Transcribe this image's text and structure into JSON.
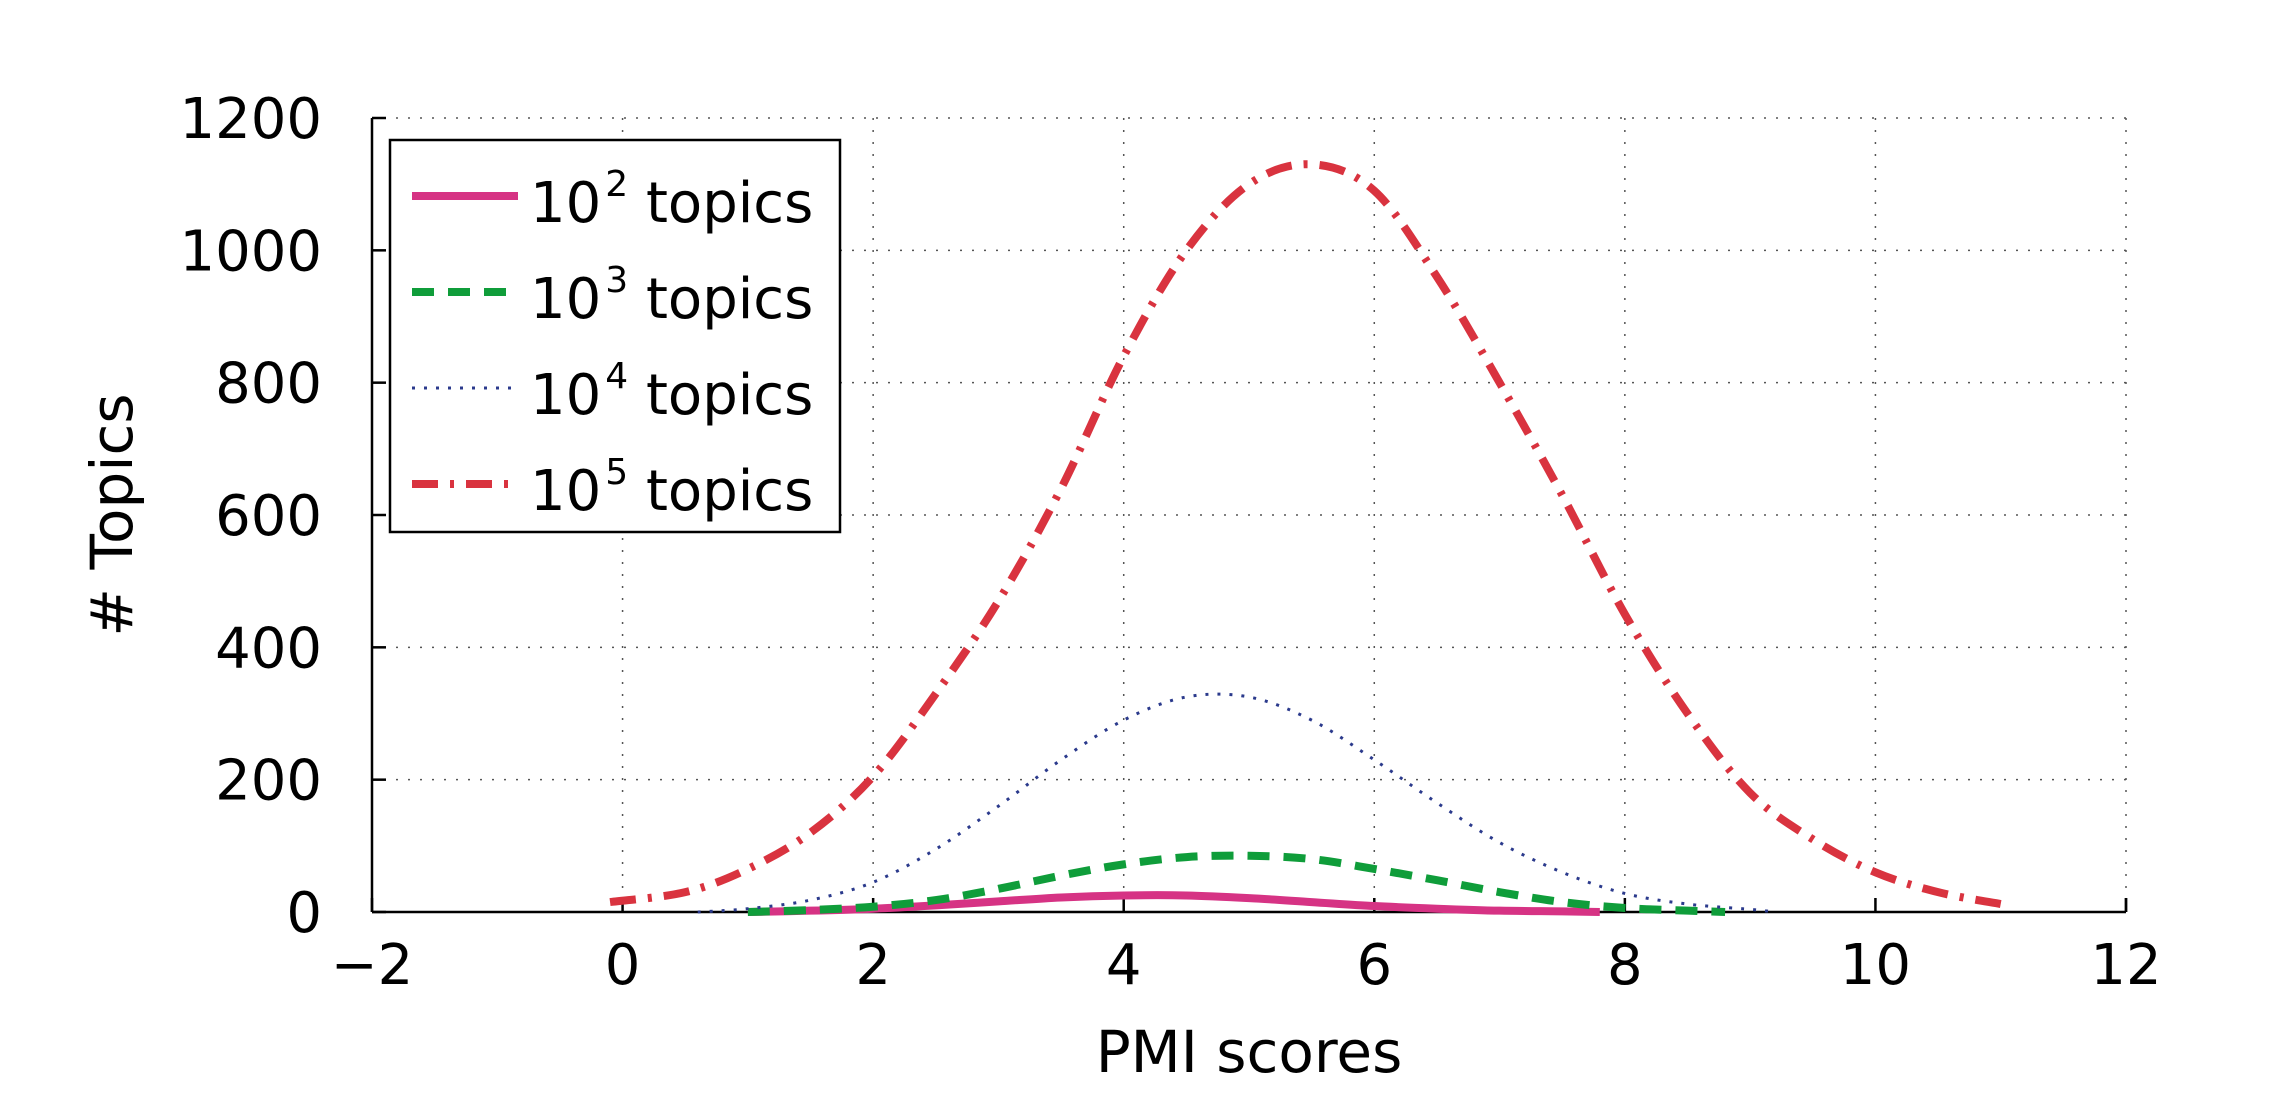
{
  "chart_data": {
    "type": "line",
    "xlabel": "PMI scores",
    "ylabel": "# Topics",
    "xlim": [
      -2,
      12
    ],
    "ylim": [
      0,
      1200
    ],
    "xticks": [
      "−2",
      "0",
      "2",
      "4",
      "6",
      "8",
      "10",
      "12"
    ],
    "yticks": [
      "0",
      "200",
      "400",
      "600",
      "800",
      "1000",
      "1200"
    ],
    "grid": true,
    "legend_position": "top-left",
    "series": [
      {
        "name": "10^2 topics",
        "legend_base": "10",
        "legend_exp": "2",
        "legend_suffix": " topics",
        "color": "#d63384",
        "style": "solid",
        "x": [
          1.0,
          1.5,
          2.0,
          2.5,
          3.0,
          3.5,
          4.0,
          4.5,
          5.0,
          5.5,
          6.0,
          6.5,
          7.0,
          7.5,
          7.8
        ],
        "y": [
          0,
          2,
          5,
          10,
          16,
          22,
          25,
          25,
          21,
          15,
          9,
          5,
          2,
          1,
          0
        ]
      },
      {
        "name": "10^3 topics",
        "legend_base": "10",
        "legend_exp": "3",
        "legend_suffix": " topics",
        "color": "#0f9d3a",
        "style": "dashed",
        "x": [
          1.0,
          1.5,
          2.0,
          2.5,
          3.0,
          3.5,
          4.0,
          4.5,
          5.0,
          5.5,
          6.0,
          6.5,
          7.0,
          7.5,
          8.0,
          8.5,
          8.8
        ],
        "y": [
          0,
          3,
          8,
          18,
          35,
          55,
          72,
          83,
          85,
          80,
          65,
          48,
          30,
          15,
          6,
          2,
          0
        ]
      },
      {
        "name": "10^4 topics",
        "legend_base": "10",
        "legend_exp": "4",
        "legend_suffix": " topics",
        "color": "#2b3a8c",
        "style": "dotted",
        "x": [
          0.6,
          1.0,
          1.5,
          2.0,
          2.5,
          3.0,
          3.5,
          4.0,
          4.5,
          5.0,
          5.5,
          6.0,
          6.5,
          7.0,
          7.5,
          8.0,
          8.5,
          9.0,
          9.2
        ],
        "y": [
          0,
          5,
          18,
          45,
          95,
          160,
          230,
          290,
          325,
          325,
          290,
          230,
          165,
          105,
          60,
          28,
          12,
          4,
          0
        ]
      },
      {
        "name": "10^5 topics",
        "legend_base": "10",
        "legend_exp": "5",
        "legend_suffix": " topics",
        "color": "#d9333f",
        "style": "dashdot",
        "x": [
          -0.1,
          0.5,
          1.0,
          1.5,
          2.0,
          2.5,
          3.0,
          3.5,
          4.0,
          4.5,
          5.0,
          5.5,
          6.0,
          6.5,
          7.0,
          7.5,
          8.0,
          8.5,
          9.0,
          9.5,
          10.0,
          10.5,
          11.0
        ],
        "y": [
          15,
          30,
          65,
          120,
          205,
          330,
          470,
          640,
          840,
          1000,
          1100,
          1130,
          1090,
          960,
          800,
          630,
          450,
          300,
          180,
          110,
          60,
          30,
          12
        ]
      }
    ]
  }
}
